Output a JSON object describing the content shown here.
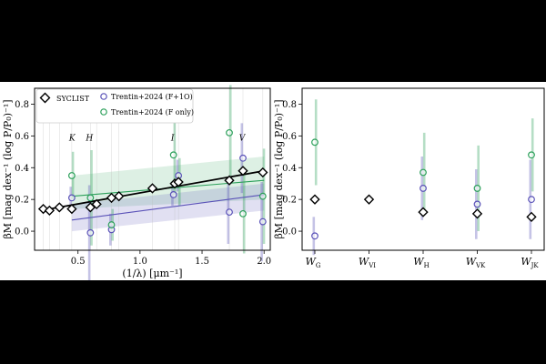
{
  "chart_data": [
    {
      "type": "scatter",
      "xlabel": "(1/λ) [μm⁻¹]",
      "ylabel": "βM [mag dex⁻¹ (log P/P₀)⁻¹]",
      "xlim": [
        0.15,
        2.05
      ],
      "ylim": [
        -0.12,
        0.9
      ],
      "xticks": [
        "0.5",
        "1.0",
        "1.5",
        "2.0"
      ],
      "yticks": [
        "0.0",
        "0.2",
        "0.4",
        "0.6",
        "0.8"
      ],
      "grid": false,
      "legend_position": "top-left",
      "legend": [
        "SYCLIST",
        "Trentin+2024 (F+1O)",
        "Trentin+2024 (F only)"
      ],
      "colors": {
        "syclist": "#000000",
        "f1o": "#5a52b8",
        "fonly": "#2ca05a"
      },
      "band_annotations": [
        {
          "label": "K",
          "x": 0.46
        },
        {
          "label": "H",
          "x": 0.6
        },
        {
          "label": "I",
          "x": 1.27
        },
        {
          "label": "V",
          "x": 1.83
        }
      ],
      "series": [
        {
          "name": "SYCLIST",
          "x": [
            0.22,
            0.27,
            0.35,
            0.45,
            0.6,
            0.65,
            0.77,
            0.83,
            1.1,
            1.28,
            1.31,
            1.72,
            1.83,
            1.99
          ],
          "y": [
            0.14,
            0.13,
            0.15,
            0.14,
            0.15,
            0.17,
            0.21,
            0.22,
            0.27,
            0.3,
            0.31,
            0.32,
            0.38,
            0.37
          ],
          "fit": {
            "x": [
              0.2,
              2.0
            ],
            "y": [
              0.13,
              0.38
            ]
          }
        },
        {
          "name": "Trentin+2024 (F+1O)",
          "x": [
            0.45,
            0.6,
            0.77,
            1.27,
            1.31,
            1.72,
            1.83,
            1.99
          ],
          "y": [
            0.21,
            -0.01,
            0.01,
            0.23,
            0.35,
            0.12,
            0.46,
            0.06
          ],
          "err": [
            0.07,
            0.3,
            0.1,
            0.07,
            0.1,
            0.2,
            0.22,
            0.25
          ],
          "fit": {
            "x": [
              0.45,
              2.0
            ],
            "y": [
              0.07,
              0.23
            ]
          },
          "band_low": [
            0.0,
            0.13
          ],
          "band_high": [
            0.17,
            0.3
          ]
        },
        {
          "name": "Trentin+2024 (F only)",
          "x": [
            0.45,
            0.6,
            0.77,
            1.27,
            1.31,
            1.72,
            1.83,
            1.99
          ],
          "y": [
            0.35,
            0.21,
            0.04,
            0.48,
            0.31,
            0.62,
            0.11,
            0.22
          ],
          "err": [
            0.15,
            0.3,
            0.1,
            0.25,
            0.15,
            0.3,
            0.25,
            0.3
          ],
          "fit": {
            "x": [
              0.45,
              2.0
            ],
            "y": [
              0.22,
              0.32
            ]
          },
          "band_low": [
            0.14,
            0.2
          ],
          "band_high": [
            0.35,
            0.47
          ]
        }
      ]
    },
    {
      "type": "scatter",
      "ylabel": "βM [mag dex⁻¹ (log P/P₀)⁻¹]",
      "ylim": [
        -0.12,
        0.9
      ],
      "yticks": [
        "0.0",
        "0.2",
        "0.4",
        "0.6",
        "0.8"
      ],
      "categories": [
        {
          "base": "W",
          "sub": "G"
        },
        {
          "base": "W",
          "sub": "VI"
        },
        {
          "base": "W",
          "sub": "H"
        },
        {
          "base": "W",
          "sub": "VK"
        },
        {
          "base": "W",
          "sub": "JK"
        }
      ],
      "series": [
        {
          "name": "SYCLIST",
          "values": [
            0.2,
            0.2,
            0.12,
            0.11,
            0.09
          ]
        },
        {
          "name": "Trentin+2024 (F+1O)",
          "values": [
            -0.03,
            null,
            0.27,
            0.17,
            0.2
          ],
          "err": [
            0.12,
            null,
            0.2,
            0.22,
            0.25
          ]
        },
        {
          "name": "Trentin+2024 (F only)",
          "values": [
            0.56,
            null,
            0.37,
            0.27,
            0.48
          ],
          "err": [
            0.27,
            null,
            0.25,
            0.27,
            0.23
          ]
        }
      ]
    }
  ]
}
